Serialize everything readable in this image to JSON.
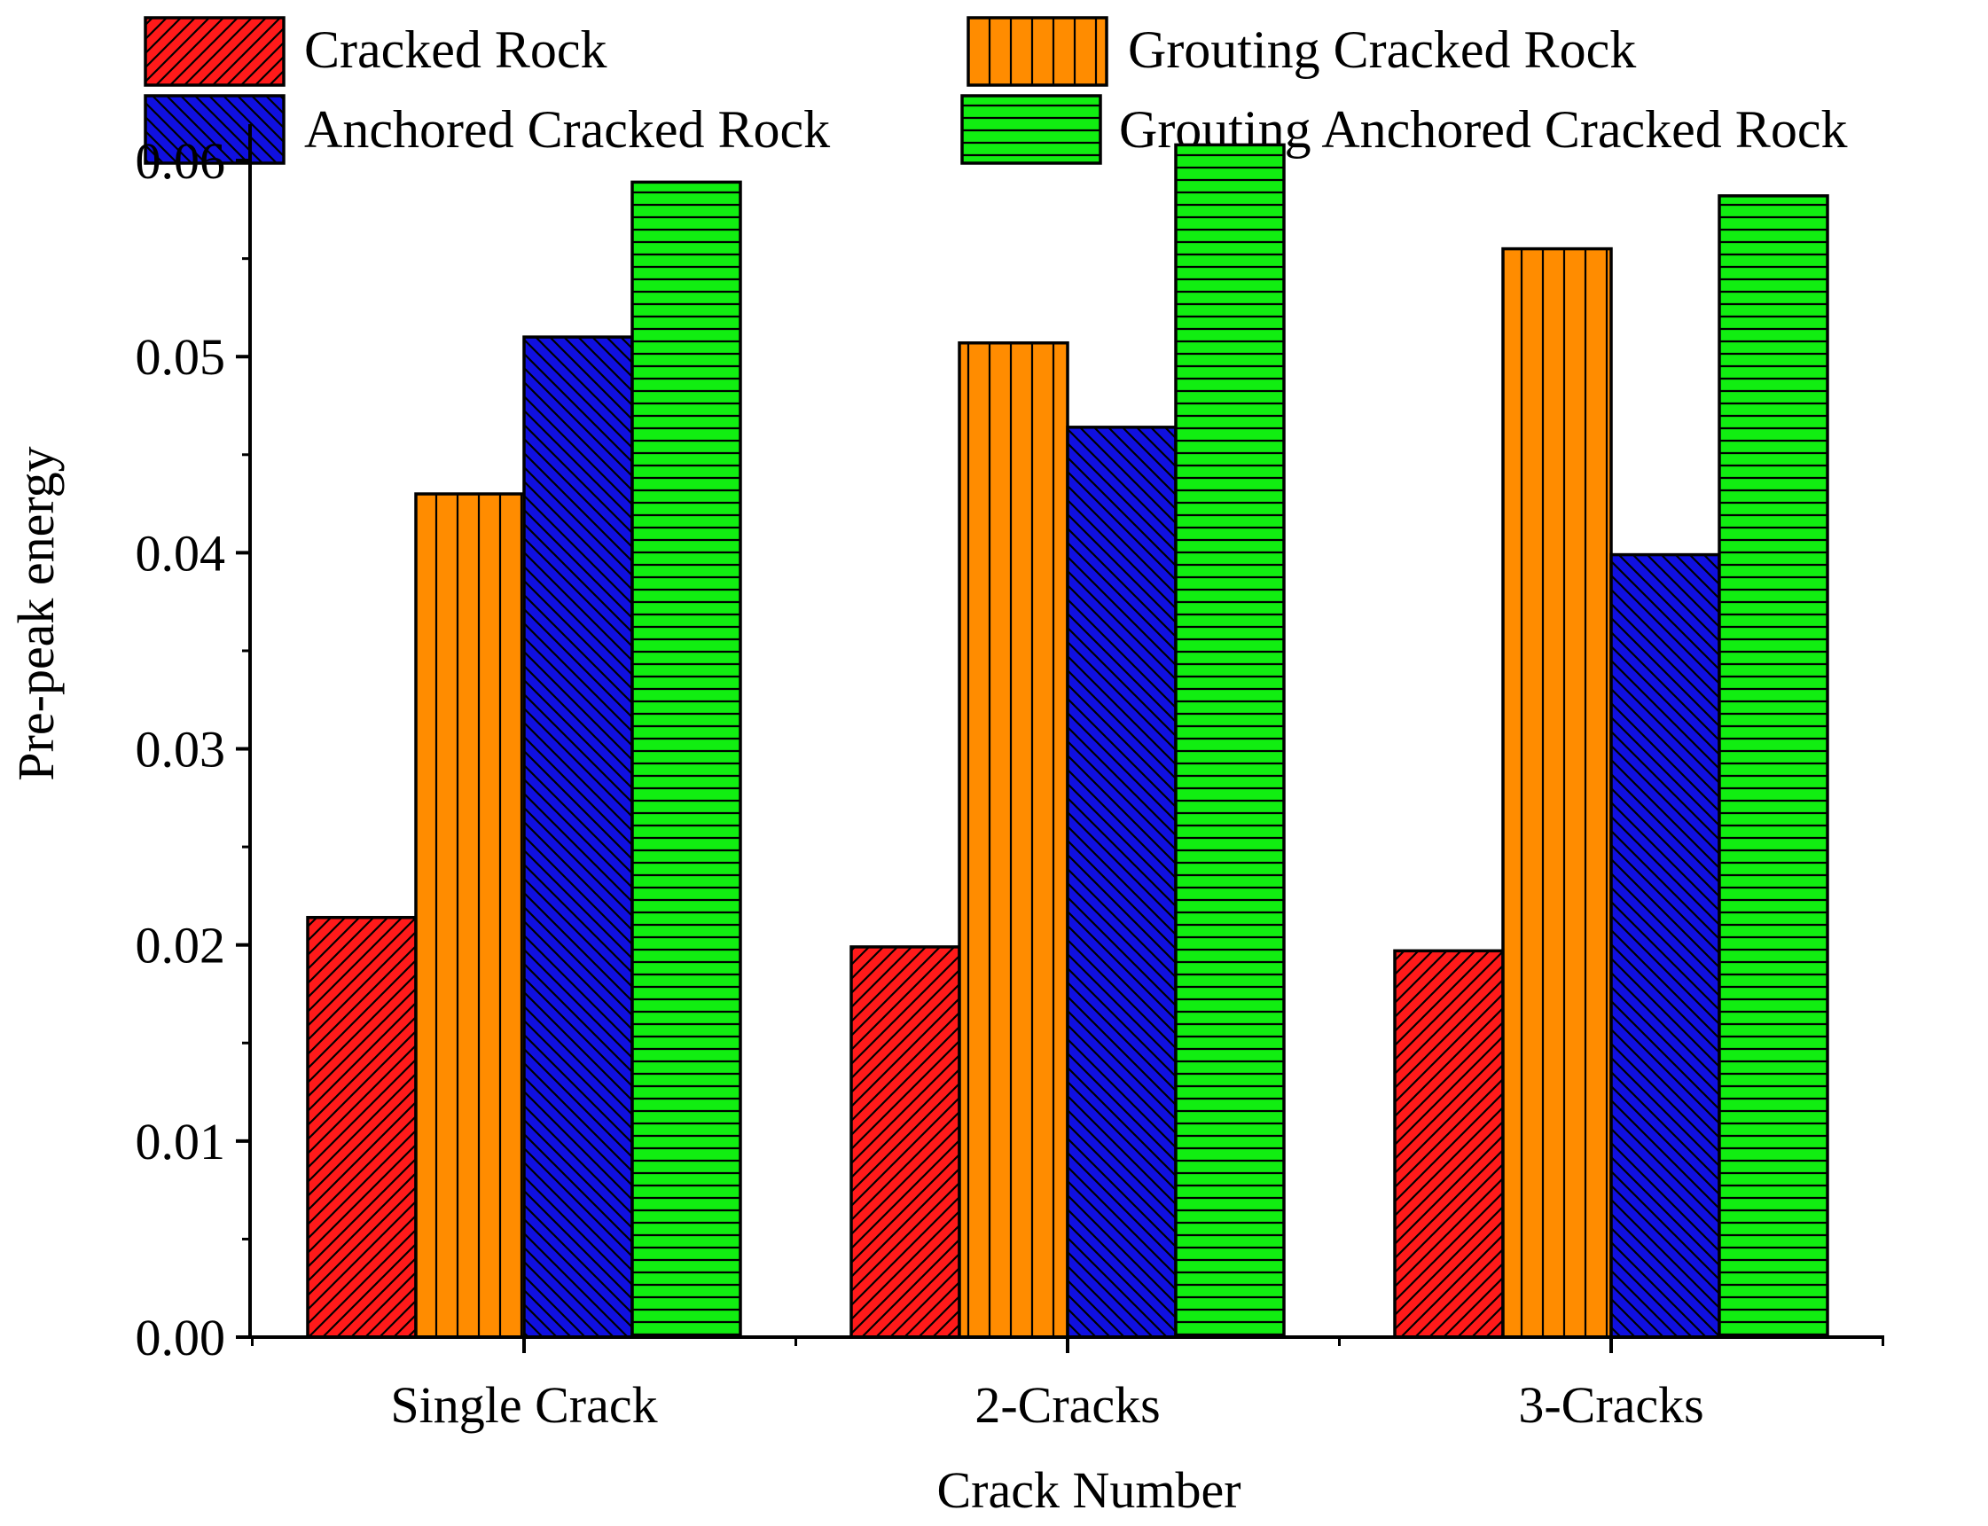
{
  "chart_data": {
    "type": "bar",
    "categories": [
      "Single Crack",
      "2-Cracks",
      "3-Cracks"
    ],
    "series": [
      {
        "name": "Cracked Rock",
        "values": [
          0.0214,
          0.0199,
          0.0197
        ],
        "color": "#ff1a1a",
        "pattern": "diagonal-up"
      },
      {
        "name": "Grouting Cracked Rock",
        "values": [
          0.043,
          0.0507,
          0.0555
        ],
        "color": "#ff8c00",
        "pattern": "vertical"
      },
      {
        "name": "Anchored Cracked Rock",
        "values": [
          0.051,
          0.0464,
          0.0399
        ],
        "color": "#1010e0",
        "pattern": "diagonal-down"
      },
      {
        "name": "Grouting Anchored Cracked Rock",
        "values": [
          0.0589,
          0.0608,
          0.0582
        ],
        "color": "#11ee11",
        "pattern": "horizontal"
      }
    ],
    "title": "",
    "xlabel": "Crack Number",
    "ylabel": "Pre-peak energy",
    "ylim": [
      0,
      0.0605
    ],
    "yticks": [
      "0.00",
      "0.01",
      "0.02",
      "0.03",
      "0.04",
      "0.05",
      "0.06"
    ],
    "ytick_values": [
      0,
      0.01,
      0.02,
      0.03,
      0.04,
      0.05,
      0.06
    ],
    "legend_position": "top",
    "grid": false
  }
}
